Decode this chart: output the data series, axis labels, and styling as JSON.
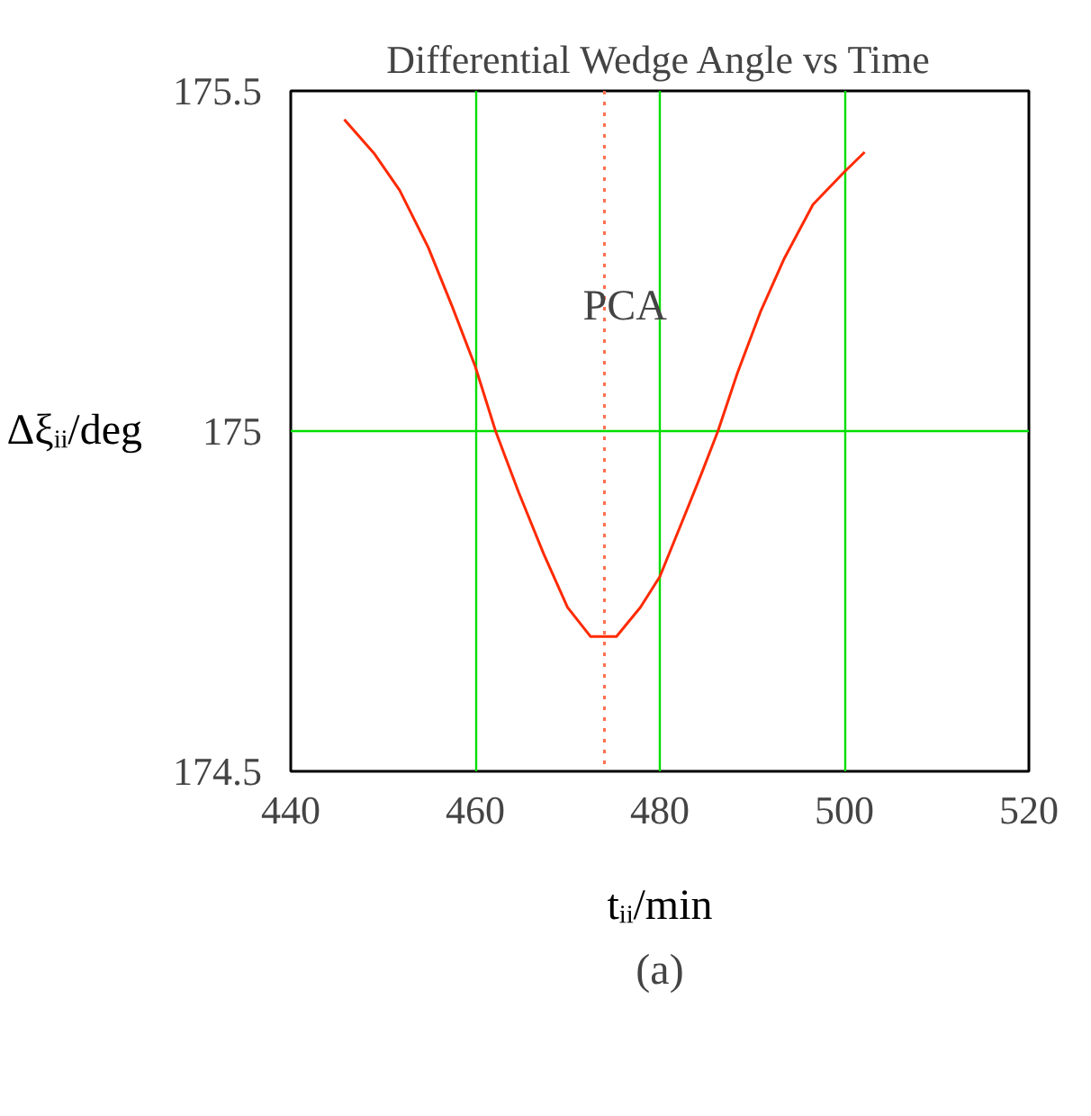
{
  "chart_data": {
    "type": "line",
    "title": "Differential Wedge Angle vs Time",
    "xlabel": "tᵢᵢ/min",
    "ylabel": "Δξᵢᵢ/deg",
    "x": [
      445.8,
      449.1,
      451.8,
      454.9,
      457.5,
      460,
      462.2,
      464.7,
      467.4,
      470,
      472.5,
      475.3,
      477.9,
      480,
      482.6,
      484.5,
      486.3,
      488.4,
      490.9,
      493.5,
      496.6,
      500,
      502.2
    ],
    "series": [
      {
        "color": "#ff2a00",
        "values": [
          175.458,
          175.407,
          175.354,
          175.27,
          175.183,
          175.095,
          175.0,
          174.91,
          174.82,
          174.741,
          174.698,
          174.698,
          174.741,
          174.786,
          174.873,
          174.937,
          175.0,
          175.085,
          175.175,
          175.254,
          175.333,
          175.381,
          175.41
        ]
      }
    ],
    "xlim": [
      440,
      520
    ],
    "ylim": [
      174.5,
      175.5
    ],
    "xticks": [
      440,
      460,
      480,
      500,
      520
    ],
    "yticks": [
      174.5,
      175,
      175.5
    ],
    "grid": true,
    "ref_lines": [
      {
        "axis": "x",
        "value": 474,
        "label": "PCA",
        "color": "#ff7050",
        "line_style": "dotted"
      }
    ],
    "annotations": [
      "(a)"
    ]
  }
}
